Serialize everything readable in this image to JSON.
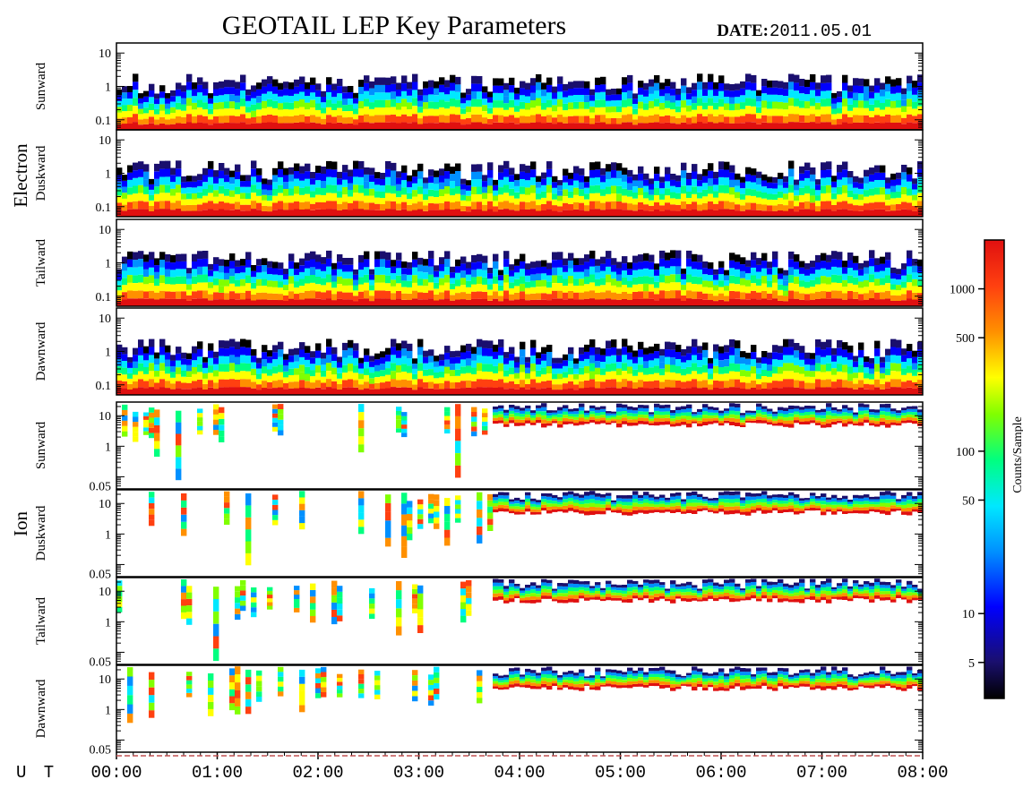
{
  "chart_data": {
    "type": "heatmap",
    "title": "GEOTAIL LEP Key Parameters",
    "date_label": "DATE:",
    "date_value": "2011.05.01",
    "x_label": "U T",
    "x_ticks": [
      "00:00",
      "01:00",
      "02:00",
      "03:00",
      "04:00",
      "05:00",
      "06:00",
      "07:00",
      "08:00"
    ],
    "y_scale": "log",
    "groups": [
      {
        "name": "Electron",
        "y_range": [
          0.05,
          20
        ],
        "y_ticks": [
          "10",
          "1",
          "0.1"
        ],
        "panels": [
          {
            "name": "Sunward"
          },
          {
            "name": "Duskward"
          },
          {
            "name": "Tailward"
          },
          {
            "name": "Dawnward"
          }
        ]
      },
      {
        "name": "Ion",
        "y_range": [
          0.04,
          28
        ],
        "y_ticks": [
          "10",
          "1",
          "0.05"
        ],
        "panels": [
          {
            "name": "Sunward"
          },
          {
            "name": "Duskward"
          },
          {
            "name": "Tailward"
          },
          {
            "name": "Dawnward"
          }
        ]
      }
    ],
    "colorbar": {
      "label": "Counts/Sample",
      "scale": "log",
      "range": [
        3,
        2000
      ],
      "ticks": [
        "1000",
        "500",
        "100",
        "50",
        "10",
        "5"
      ],
      "colors": [
        "#000000",
        "#1a0f6e",
        "#0000ff",
        "#0090ff",
        "#00e8ff",
        "#00ff80",
        "#80ff00",
        "#ffff00",
        "#ff9000",
        "#ff4010",
        "#e01010"
      ]
    }
  }
}
